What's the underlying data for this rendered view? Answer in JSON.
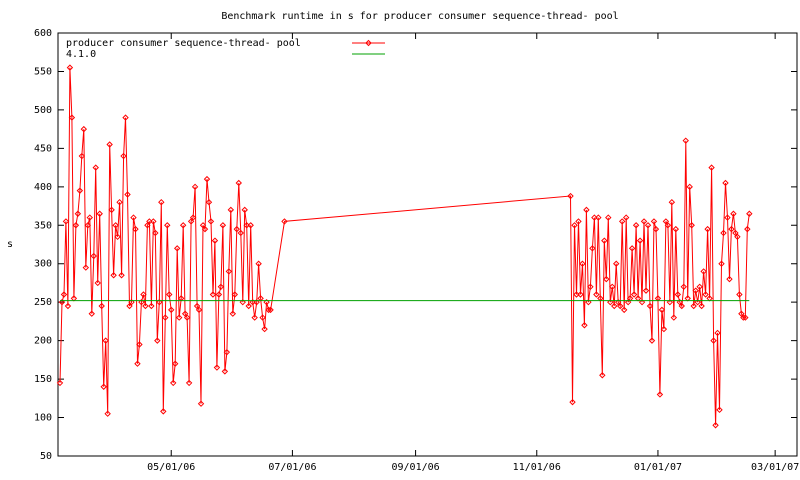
{
  "chart_data": {
    "type": "line",
    "title": "Benchmark runtime in s for producer consumer sequence-thread-  pool",
    "y_label": "s",
    "legend": "top-left",
    "ylim": [
      50,
      600
    ],
    "yticks": [
      50,
      100,
      150,
      200,
      250,
      300,
      350,
      400,
      450,
      500,
      550,
      600
    ],
    "xlim": [
      "2006-03-05",
      "2007-03-12"
    ],
    "xticks": [
      {
        "value": "2006-05-01",
        "label": "05/01/06"
      },
      {
        "value": "2006-07-01",
        "label": "07/01/06"
      },
      {
        "value": "2006-09-01",
        "label": "09/01/06"
      },
      {
        "value": "2006-11-01",
        "label": "11/01/06"
      },
      {
        "value": "2007-01-01",
        "label": "01/01/07"
      },
      {
        "value": "2007-03-01",
        "label": "03/01/07"
      }
    ],
    "series": [
      {
        "name": "producer consumer sequence-thread-  pool",
        "color": "#ff0000",
        "markers": true,
        "x": [
          "2006-03-06",
          "2006-03-07",
          "2006-03-08",
          "2006-03-09",
          "2006-03-10",
          "2006-03-11",
          "2006-03-12",
          "2006-03-13",
          "2006-03-14",
          "2006-03-15",
          "2006-03-16",
          "2006-03-17",
          "2006-03-18",
          "2006-03-19",
          "2006-03-20",
          "2006-03-21",
          "2006-03-22",
          "2006-03-23",
          "2006-03-24",
          "2006-03-25",
          "2006-03-26",
          "2006-03-27",
          "2006-03-28",
          "2006-03-29",
          "2006-03-30",
          "2006-03-31",
          "2006-04-01",
          "2006-04-02",
          "2006-04-03",
          "2006-04-04",
          "2006-04-05",
          "2006-04-06",
          "2006-04-07",
          "2006-04-08",
          "2006-04-09",
          "2006-04-10",
          "2006-04-11",
          "2006-04-12",
          "2006-04-13",
          "2006-04-14",
          "2006-04-15",
          "2006-04-16",
          "2006-04-17",
          "2006-04-18",
          "2006-04-19",
          "2006-04-20",
          "2006-04-21",
          "2006-04-22",
          "2006-04-23",
          "2006-04-24",
          "2006-04-25",
          "2006-04-26",
          "2006-04-27",
          "2006-04-28",
          "2006-04-29",
          "2006-04-30",
          "2006-05-01",
          "2006-05-02",
          "2006-05-03",
          "2006-05-04",
          "2006-05-05",
          "2006-05-06",
          "2006-05-07",
          "2006-05-08",
          "2006-05-09",
          "2006-05-10",
          "2006-05-11",
          "2006-05-12",
          "2006-05-13",
          "2006-05-14",
          "2006-05-15",
          "2006-05-16",
          "2006-05-17",
          "2006-05-18",
          "2006-05-19",
          "2006-05-20",
          "2006-05-21",
          "2006-05-22",
          "2006-05-23",
          "2006-05-24",
          "2006-05-25",
          "2006-05-26",
          "2006-05-27",
          "2006-05-28",
          "2006-05-29",
          "2006-05-30",
          "2006-05-31",
          "2006-06-01",
          "2006-06-02",
          "2006-06-03",
          "2006-06-04",
          "2006-06-05",
          "2006-06-06",
          "2006-06-07",
          "2006-06-08",
          "2006-06-09",
          "2006-06-10",
          "2006-06-11",
          "2006-06-12",
          "2006-06-13",
          "2006-06-14",
          "2006-06-15",
          "2006-06-16",
          "2006-06-17",
          "2006-06-18",
          "2006-06-19",
          "2006-06-20",
          "2006-06-27",
          "2006-11-18",
          "2006-11-19",
          "2006-11-20",
          "2006-11-21",
          "2006-11-22",
          "2006-11-23",
          "2006-11-24",
          "2006-11-25",
          "2006-11-26",
          "2006-11-27",
          "2006-11-28",
          "2006-11-29",
          "2006-11-30",
          "2006-12-01",
          "2006-12-02",
          "2006-12-03",
          "2006-12-04",
          "2006-12-05",
          "2006-12-06",
          "2006-12-07",
          "2006-12-08",
          "2006-12-09",
          "2006-12-10",
          "2006-12-11",
          "2006-12-12",
          "2006-12-13",
          "2006-12-14",
          "2006-12-15",
          "2006-12-16",
          "2006-12-17",
          "2006-12-18",
          "2006-12-19",
          "2006-12-20",
          "2006-12-21",
          "2006-12-22",
          "2006-12-23",
          "2006-12-24",
          "2006-12-25",
          "2006-12-26",
          "2006-12-27",
          "2006-12-28",
          "2006-12-29",
          "2006-12-30",
          "2006-12-31",
          "2007-01-01",
          "2007-01-02",
          "2007-01-03",
          "2007-01-04",
          "2007-01-05",
          "2007-01-06",
          "2007-01-07",
          "2007-01-08",
          "2007-01-09",
          "2007-01-10",
          "2007-01-11",
          "2007-01-12",
          "2007-01-13",
          "2007-01-14",
          "2007-01-15",
          "2007-01-16",
          "2007-01-17",
          "2007-01-18",
          "2007-01-19",
          "2007-01-20",
          "2007-01-21",
          "2007-01-22",
          "2007-01-23",
          "2007-01-24",
          "2007-01-25",
          "2007-01-26",
          "2007-01-27",
          "2007-01-28",
          "2007-01-29",
          "2007-01-30",
          "2007-01-31",
          "2007-02-01",
          "2007-02-02",
          "2007-02-03",
          "2007-02-04",
          "2007-02-05",
          "2007-02-06",
          "2007-02-07",
          "2007-02-08",
          "2007-02-09",
          "2007-02-10",
          "2007-02-11",
          "2007-02-12",
          "2007-02-13",
          "2007-02-14",
          "2007-02-15",
          "2007-02-16"
        ],
        "values": [
          145,
          250,
          260,
          355,
          245,
          555,
          490,
          255,
          350,
          365,
          395,
          440,
          475,
          295,
          350,
          360,
          235,
          310,
          425,
          275,
          365,
          245,
          140,
          200,
          105,
          455,
          370,
          285,
          350,
          335,
          380,
          285,
          440,
          490,
          390,
          245,
          250,
          360,
          345,
          170,
          195,
          250,
          260,
          245,
          350,
          355,
          245,
          355,
          340,
          200,
          250,
          380,
          108,
          230,
          350,
          260,
          240,
          145,
          170,
          320,
          230,
          255,
          350,
          235,
          230,
          145,
          355,
          360,
          400,
          245,
          240,
          118,
          350,
          345,
          410,
          380,
          355,
          260,
          330,
          165,
          260,
          270,
          350,
          160,
          185,
          290,
          370,
          235,
          260,
          345,
          405,
          340,
          250,
          370,
          350,
          245,
          350,
          250,
          230,
          250,
          300,
          255,
          230,
          215,
          250,
          240,
          240,
          355,
          388,
          120,
          350,
          260,
          355,
          260,
          300,
          220,
          370,
          250,
          270,
          320,
          360,
          260,
          360,
          255,
          155,
          330,
          280,
          360,
          250,
          270,
          245,
          300,
          250,
          245,
          355,
          240,
          360,
          250,
          255,
          320,
          260,
          350,
          255,
          330,
          250,
          355,
          265,
          350,
          245,
          200,
          355,
          345,
          255,
          130,
          240,
          215,
          355,
          350,
          250,
          380,
          230,
          345,
          260,
          250,
          245,
          270,
          460,
          255,
          400,
          350,
          245,
          265,
          250,
          270,
          245,
          290,
          260,
          345,
          255,
          425,
          200,
          90,
          210,
          110,
          300,
          340,
          405,
          360,
          280,
          345,
          365,
          340,
          335,
          260,
          235,
          230,
          230,
          345,
          365
        ]
      },
      {
        "name": "4.1.0",
        "color": "#00a000",
        "markers": false,
        "x": [
          "2006-03-06",
          "2007-02-16"
        ],
        "values": [
          252,
          252
        ]
      }
    ]
  }
}
